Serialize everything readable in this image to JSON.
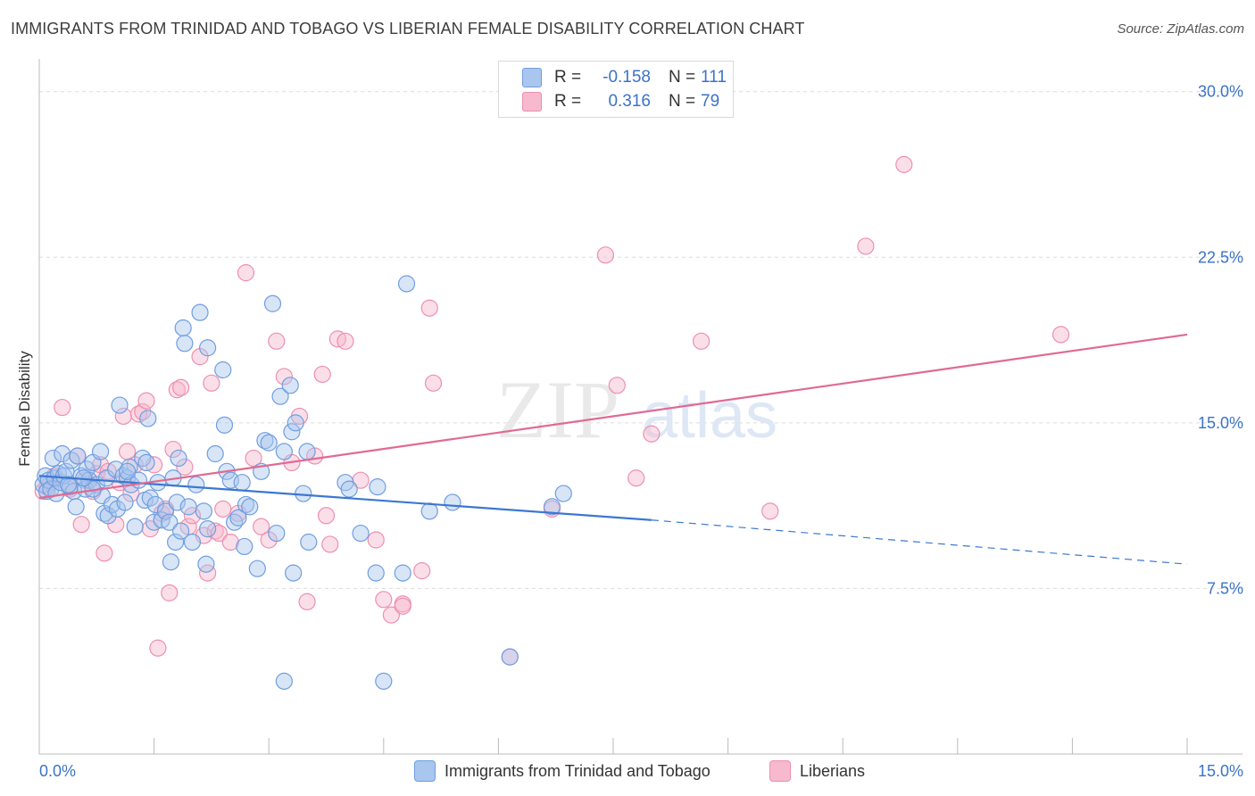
{
  "title": "IMMIGRANTS FROM TRINIDAD AND TOBAGO VS LIBERIAN FEMALE DISABILITY CORRELATION CHART",
  "source": "Source: ZipAtlas.com",
  "watermark": {
    "zip": "ZIP",
    "atlas": "atlas"
  },
  "legend": {
    "rows": [
      {
        "r_label": "R =",
        "r_value": "-0.158",
        "n_label": "N =",
        "n_value": "111"
      },
      {
        "r_label": "R =",
        "r_value": "0.316",
        "n_label": "N =",
        "n_value": "79"
      }
    ]
  },
  "bottom_legend": {
    "series1": "Immigrants from Trinidad and Tobago",
    "series2": "Liberians"
  },
  "colors": {
    "series1_fill": "#a9c6ee",
    "series1_stroke": "#6f9ee0",
    "series1_line": "#3c78d0",
    "series2_fill": "#f6b9cd",
    "series2_stroke": "#ee8fb0",
    "series2_line": "#e06a93",
    "axis_label": "#3b73c7",
    "grid": "#dcdcdc"
  },
  "chart_data": {
    "type": "scatter",
    "title": "IMMIGRANTS FROM TRINIDAD AND TOBAGO VS LIBERIAN FEMALE DISABILITY CORRELATION CHART",
    "xlabel": "",
    "ylabel": "Female Disability",
    "xlim": [
      0,
      15
    ],
    "ylim": [
      0,
      31
    ],
    "x_tick_labels": [
      "0.0%",
      "15.0%"
    ],
    "y_ticks": [
      7.5,
      15.0,
      22.5,
      30.0
    ],
    "y_tick_labels": [
      "7.5%",
      "15.0%",
      "22.5%",
      "30.0%"
    ],
    "grid": true,
    "legend_position": "top-center",
    "series": [
      {
        "name": "Immigrants from Trinidad and Tobago",
        "r": -0.158,
        "n": 111,
        "trend": {
          "x0": 0,
          "y0": 12.6,
          "x1": 8.0,
          "y1": 10.6,
          "dash_x1": 15,
          "dash_y1": 8.6
        },
        "points": [
          [
            0.05,
            12.2
          ],
          [
            0.08,
            12.6
          ],
          [
            0.1,
            11.9
          ],
          [
            0.12,
            12.4
          ],
          [
            0.15,
            12.0
          ],
          [
            0.18,
            13.4
          ],
          [
            0.2,
            12.5
          ],
          [
            0.22,
            11.8
          ],
          [
            0.25,
            12.7
          ],
          [
            0.28,
            12.3
          ],
          [
            0.3,
            13.6
          ],
          [
            0.32,
            12.6
          ],
          [
            0.35,
            12.8
          ],
          [
            0.4,
            12.1
          ],
          [
            0.42,
            13.3
          ],
          [
            0.45,
            11.9
          ],
          [
            0.48,
            11.2
          ],
          [
            0.5,
            13.5
          ],
          [
            0.55,
            12.6
          ],
          [
            0.6,
            12.0
          ],
          [
            0.62,
            12.9
          ],
          [
            0.65,
            12.4
          ],
          [
            0.7,
            13.2
          ],
          [
            0.75,
            12.2
          ],
          [
            0.8,
            13.7
          ],
          [
            0.82,
            11.7
          ],
          [
            0.85,
            10.9
          ],
          [
            0.88,
            12.5
          ],
          [
            0.9,
            10.8
          ],
          [
            0.95,
            11.3
          ],
          [
            1.0,
            12.9
          ],
          [
            1.02,
            11.1
          ],
          [
            1.05,
            15.8
          ],
          [
            1.1,
            12.6
          ],
          [
            1.12,
            11.4
          ],
          [
            1.15,
            12.5
          ],
          [
            1.18,
            13.0
          ],
          [
            1.2,
            12.2
          ],
          [
            1.25,
            10.3
          ],
          [
            1.3,
            12.4
          ],
          [
            1.35,
            13.4
          ],
          [
            1.38,
            11.5
          ],
          [
            1.4,
            13.2
          ],
          [
            1.42,
            15.2
          ],
          [
            1.45,
            11.6
          ],
          [
            1.5,
            10.5
          ],
          [
            1.52,
            11.3
          ],
          [
            1.55,
            12.3
          ],
          [
            1.6,
            10.6
          ],
          [
            1.65,
            11.0
          ],
          [
            1.7,
            10.5
          ],
          [
            1.72,
            8.7
          ],
          [
            1.75,
            12.5
          ],
          [
            1.78,
            9.6
          ],
          [
            1.8,
            11.4
          ],
          [
            1.82,
            13.4
          ],
          [
            1.85,
            10.1
          ],
          [
            1.88,
            19.3
          ],
          [
            1.9,
            18.6
          ],
          [
            1.95,
            11.2
          ],
          [
            2.0,
            9.6
          ],
          [
            2.05,
            12.2
          ],
          [
            2.1,
            20.0
          ],
          [
            2.15,
            11.0
          ],
          [
            2.18,
            8.6
          ],
          [
            2.2,
            10.2
          ],
          [
            2.3,
            13.6
          ],
          [
            2.4,
            17.4
          ],
          [
            2.42,
            14.9
          ],
          [
            2.45,
            12.8
          ],
          [
            2.5,
            12.4
          ],
          [
            2.55,
            10.5
          ],
          [
            2.6,
            10.7
          ],
          [
            2.65,
            12.3
          ],
          [
            2.68,
            9.4
          ],
          [
            2.7,
            11.3
          ],
          [
            2.75,
            11.2
          ],
          [
            2.85,
            8.4
          ],
          [
            2.9,
            12.8
          ],
          [
            2.95,
            14.2
          ],
          [
            3.0,
            14.1
          ],
          [
            3.05,
            20.4
          ],
          [
            3.1,
            10.0
          ],
          [
            3.15,
            16.2
          ],
          [
            3.2,
            13.7
          ],
          [
            3.28,
            16.7
          ],
          [
            3.3,
            14.6
          ],
          [
            3.32,
            8.2
          ],
          [
            3.35,
            15.0
          ],
          [
            3.45,
            11.8
          ],
          [
            3.5,
            13.7
          ],
          [
            3.52,
            9.6
          ],
          [
            3.2,
            3.3
          ],
          [
            4.0,
            12.3
          ],
          [
            4.05,
            12.0
          ],
          [
            4.2,
            10.0
          ],
          [
            4.4,
            8.2
          ],
          [
            4.42,
            12.1
          ],
          [
            4.75,
            8.2
          ],
          [
            4.8,
            21.3
          ],
          [
            5.1,
            11.0
          ],
          [
            5.4,
            11.4
          ],
          [
            6.15,
            4.4
          ],
          [
            6.7,
            11.2
          ],
          [
            6.85,
            11.8
          ],
          [
            4.5,
            3.3
          ],
          [
            1.15,
            12.8
          ],
          [
            0.7,
            12.0
          ],
          [
            2.2,
            18.4
          ],
          [
            0.38,
            12.2
          ],
          [
            0.58,
            12.5
          ]
        ]
      },
      {
        "name": "Liberians",
        "r": 0.316,
        "n": 79,
        "trend": {
          "x0": 0,
          "y0": 11.6,
          "x1": 15,
          "y1": 19.0
        },
        "points": [
          [
            0.05,
            11.9
          ],
          [
            0.1,
            12.1
          ],
          [
            0.15,
            12.3
          ],
          [
            0.2,
            12.6
          ],
          [
            0.3,
            15.7
          ],
          [
            0.4,
            12.0
          ],
          [
            0.5,
            13.5
          ],
          [
            0.55,
            10.4
          ],
          [
            0.6,
            12.4
          ],
          [
            0.7,
            11.9
          ],
          [
            0.75,
            12.7
          ],
          [
            0.8,
            13.1
          ],
          [
            0.85,
            9.1
          ],
          [
            0.9,
            12.8
          ],
          [
            1.0,
            10.4
          ],
          [
            1.05,
            12.3
          ],
          [
            1.1,
            15.3
          ],
          [
            1.15,
            13.7
          ],
          [
            1.2,
            11.8
          ],
          [
            1.25,
            13.1
          ],
          [
            1.3,
            15.4
          ],
          [
            1.35,
            15.5
          ],
          [
            1.4,
            16.0
          ],
          [
            1.45,
            10.2
          ],
          [
            1.5,
            13.1
          ],
          [
            1.55,
            4.8
          ],
          [
            1.6,
            10.9
          ],
          [
            1.65,
            11.1
          ],
          [
            1.7,
            7.3
          ],
          [
            1.75,
            13.8
          ],
          [
            1.8,
            16.5
          ],
          [
            1.85,
            16.6
          ],
          [
            1.9,
            13.0
          ],
          [
            1.95,
            10.3
          ],
          [
            2.0,
            10.8
          ],
          [
            2.1,
            18.0
          ],
          [
            2.15,
            9.9
          ],
          [
            2.2,
            8.2
          ],
          [
            2.25,
            16.8
          ],
          [
            2.3,
            10.1
          ],
          [
            2.35,
            10.0
          ],
          [
            2.4,
            11.1
          ],
          [
            2.5,
            9.6
          ],
          [
            2.6,
            10.9
          ],
          [
            2.7,
            21.8
          ],
          [
            2.8,
            13.4
          ],
          [
            2.9,
            10.3
          ],
          [
            3.0,
            9.7
          ],
          [
            3.1,
            18.7
          ],
          [
            3.2,
            17.1
          ],
          [
            3.3,
            13.2
          ],
          [
            3.4,
            15.3
          ],
          [
            3.5,
            6.9
          ],
          [
            3.6,
            13.5
          ],
          [
            3.7,
            17.2
          ],
          [
            3.75,
            10.8
          ],
          [
            3.8,
            9.5
          ],
          [
            3.9,
            18.8
          ],
          [
            4.0,
            18.7
          ],
          [
            4.2,
            12.4
          ],
          [
            4.4,
            9.7
          ],
          [
            4.5,
            7.0
          ],
          [
            4.6,
            6.3
          ],
          [
            4.75,
            6.8
          ],
          [
            5.0,
            8.3
          ],
          [
            5.1,
            20.2
          ],
          [
            5.15,
            16.8
          ],
          [
            6.15,
            4.4
          ],
          [
            6.7,
            11.1
          ],
          [
            7.4,
            22.6
          ],
          [
            7.55,
            16.7
          ],
          [
            7.8,
            12.5
          ],
          [
            8.0,
            14.5
          ],
          [
            8.65,
            18.7
          ],
          [
            9.55,
            11.0
          ],
          [
            10.8,
            23.0
          ],
          [
            11.3,
            26.7
          ],
          [
            13.35,
            19.0
          ],
          [
            4.75,
            6.7
          ]
        ]
      }
    ]
  }
}
